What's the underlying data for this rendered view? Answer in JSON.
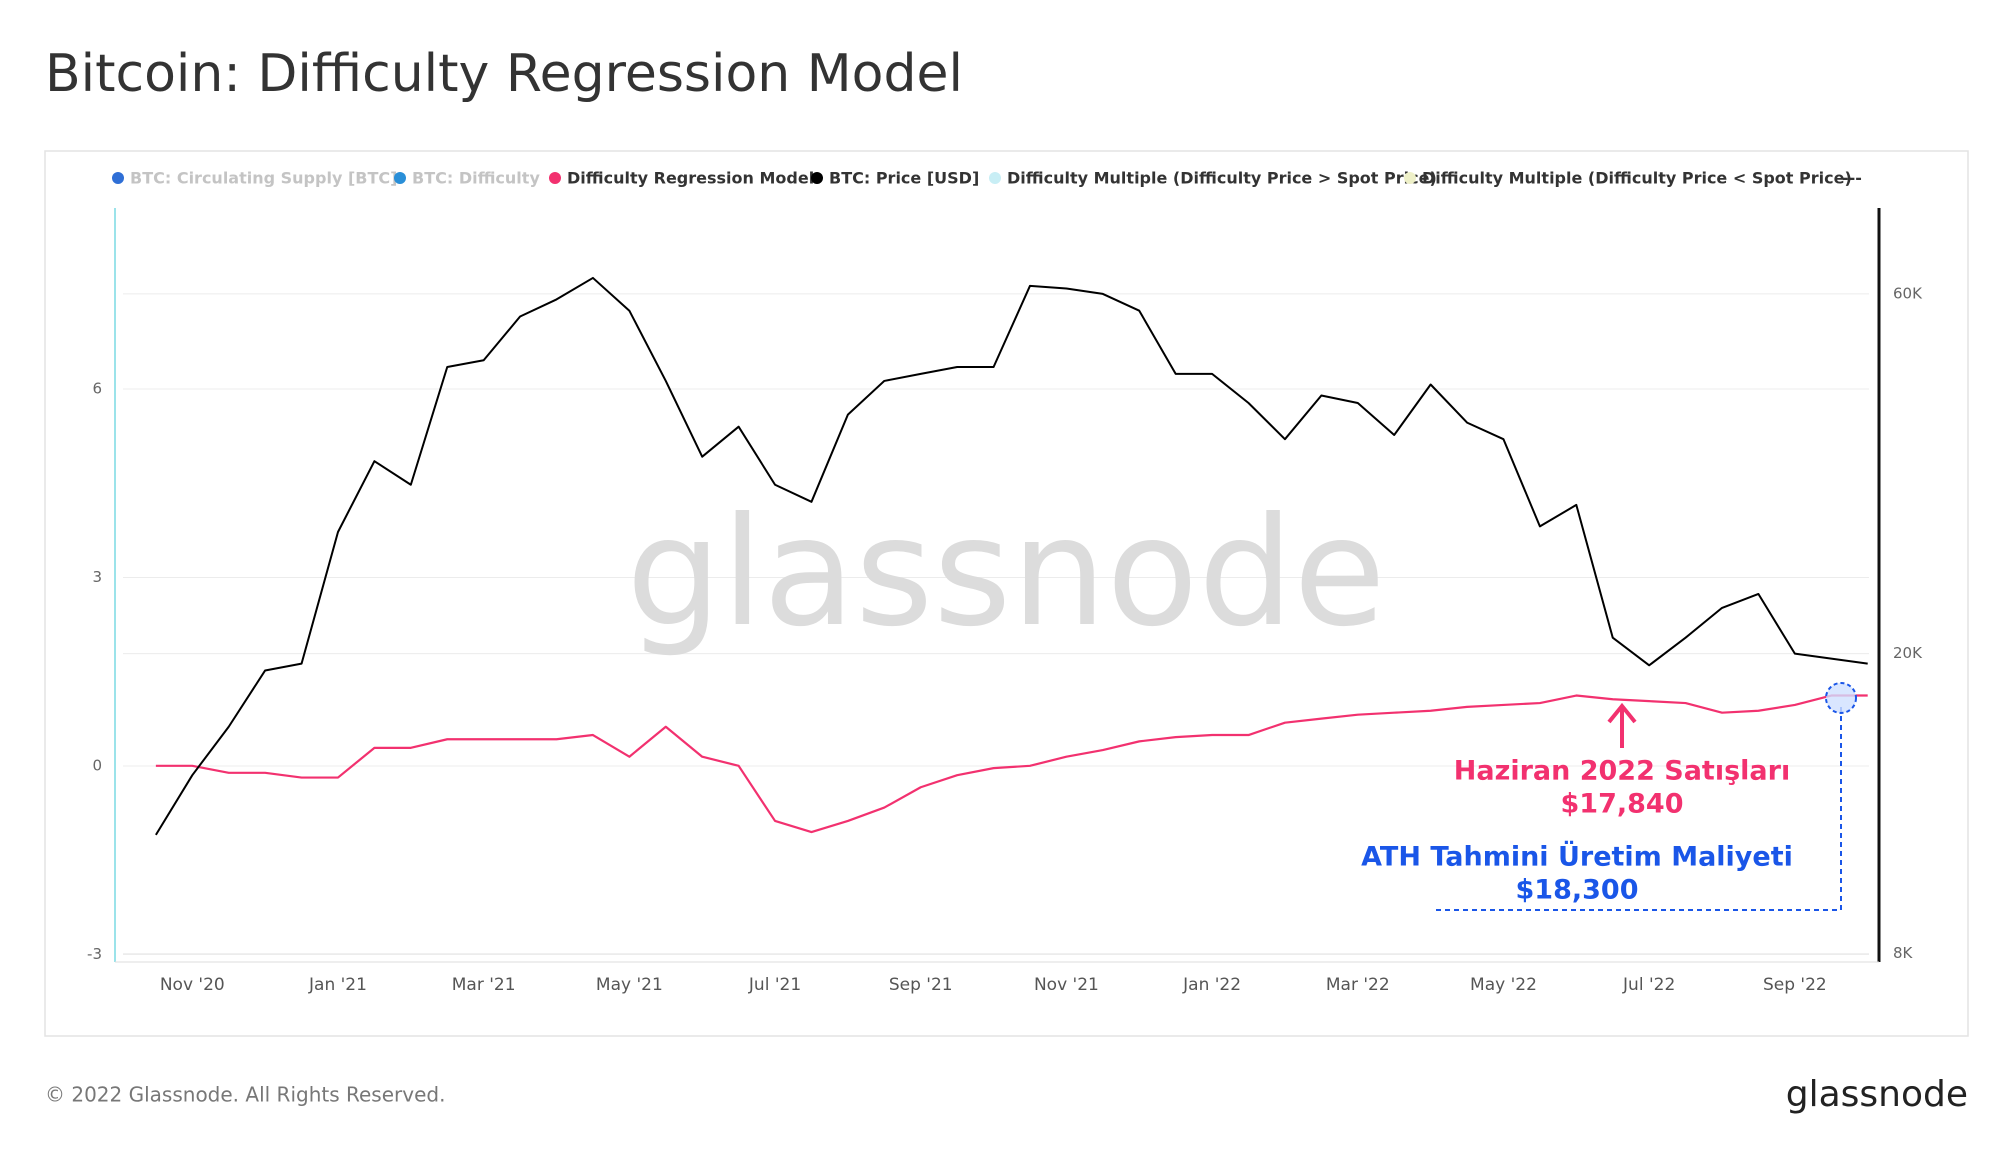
{
  "chart_data": {
    "type": "line",
    "title": "Bitcoin: Difficulty Regression Model",
    "legend": [
      {
        "name": "BTC: Circulating Supply [BTC]",
        "color": "#2f6fd6",
        "active": false
      },
      {
        "name": "BTC: Difficulty",
        "color": "#2a8fd8",
        "active": false
      },
      {
        "name": "Difficulty Regression Model",
        "color": "#f2316f",
        "active": true
      },
      {
        "name": "BTC: Price [USD]",
        "color": "#000000",
        "active": true
      },
      {
        "name": "Difficulty Multiple (Difficulty Price > Spot Price)",
        "color": "#c8eef5",
        "active": true
      },
      {
        "name": "Difficulty Multiple (Difficulty Price < Spot Price)",
        "color": "#eef0c8",
        "active": true
      },
      {
        "name": "---",
        "color": null,
        "active": true
      }
    ],
    "categories": [
      null,
      "Nov '20",
      null,
      null,
      null,
      "Jan '21",
      null,
      null,
      null,
      "Mar '21",
      null,
      null,
      null,
      "May '21",
      null,
      null,
      null,
      "Jul '21",
      null,
      null,
      null,
      "Sep '21",
      null,
      null,
      null,
      "Nov '21",
      null,
      null,
      null,
      "Jan '22",
      null,
      null,
      null,
      "Mar '22",
      null,
      null,
      null,
      "May '22",
      null,
      null,
      null,
      "Jul '22",
      null,
      null,
      null,
      "Sep '22",
      null,
      null
    ],
    "series": [
      {
        "name": "BTC: Price [USD]",
        "color": "#000000",
        "axis": "y2",
        "values": [
          11500,
          13800,
          16000,
          19000,
          19400,
          29000,
          36000,
          33500,
          48000,
          49000,
          56000,
          59000,
          63000,
          57000,
          46000,
          36500,
          40000,
          33500,
          31800,
          41500,
          46000,
          47000,
          48000,
          48000,
          61500,
          61000,
          60000,
          57000,
          47000,
          47000,
          43000,
          38500,
          44000,
          43000,
          39000,
          45500,
          40500,
          38500,
          29500,
          31500,
          21000,
          19300,
          21000,
          23000,
          24000,
          20000,
          19700,
          19400
        ]
      },
      {
        "name": "Difficulty Regression Model",
        "color": "#f2316f",
        "axis": "y2",
        "values": [
          14200,
          14200,
          13900,
          13900,
          13700,
          13700,
          15000,
          15000,
          15400,
          15400,
          15400,
          15400,
          15600,
          14600,
          16000,
          14600,
          14200,
          12000,
          11600,
          12000,
          12500,
          13300,
          13800,
          14100,
          14200,
          14600,
          14900,
          15300,
          15500,
          15600,
          15600,
          16200,
          16400,
          16600,
          16700,
          16800,
          17000,
          17100,
          17200,
          17600,
          17400,
          17300,
          17200,
          16700,
          16800,
          17100,
          17600,
          17600
        ]
      }
    ],
    "ylim": [
      -3.12,
      8.88
    ],
    "yticks": [
      -3,
      0,
      3,
      6
    ],
    "y2lim": [
      7800,
      78000
    ],
    "y2ticks": [
      {
        "value": 8000,
        "label": "8K"
      },
      {
        "value": 20000,
        "label": "20K"
      },
      {
        "value": 60000,
        "label": "60K"
      }
    ],
    "y2log": true,
    "grid": true,
    "watermark": "glassnode",
    "annotations": [
      {
        "text": "Haziran 2022 Satışları",
        "color": "#f2316f"
      },
      {
        "text": "$17,840",
        "color": "#f2316f"
      },
      {
        "text": "ATH Tahmini Üretim Maliyeti",
        "color": "#1a56e8"
      },
      {
        "text": "$18,300",
        "color": "#1a56e8"
      }
    ],
    "footer": "© 2022 Glassnode. All Rights Reserved.",
    "logo": "glassnode"
  }
}
